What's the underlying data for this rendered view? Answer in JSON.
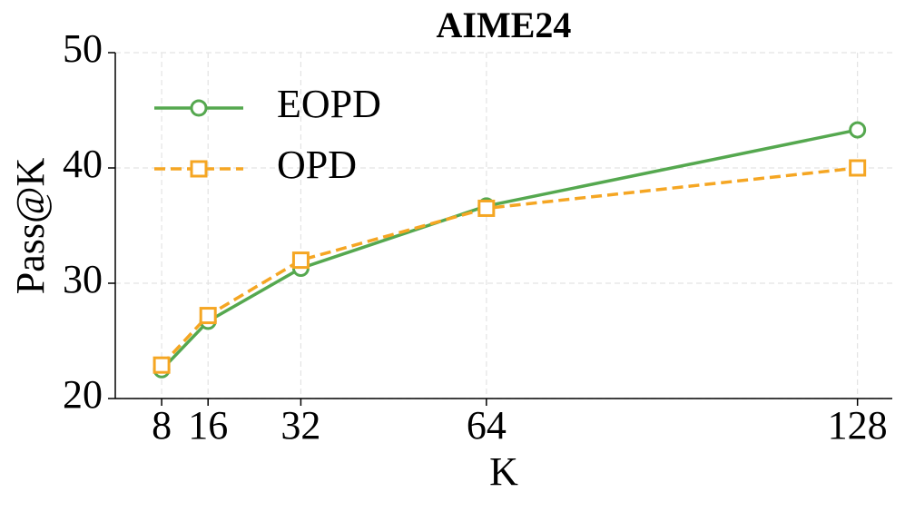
{
  "chart_data": {
    "type": "line",
    "title": "AIME24",
    "xlabel": "K",
    "ylabel": "Pass@K",
    "x": [
      8,
      16,
      32,
      64,
      128
    ],
    "series": [
      {
        "name": "EOPD",
        "color": "#55a84f",
        "linestyle": "solid",
        "marker": "o",
        "values": [
          22.5,
          26.7,
          31.3,
          36.7,
          43.3
        ]
      },
      {
        "name": "OPD",
        "color": "#f5a623",
        "linestyle": "dashed",
        "marker": "s",
        "values": [
          22.9,
          27.2,
          32.0,
          36.5,
          40.0
        ]
      }
    ],
    "xlim": [
      0,
      134
    ],
    "xticks": [
      8,
      16,
      32,
      64,
      128
    ],
    "ylim": [
      20,
      50
    ],
    "yticks": [
      20,
      30,
      40,
      50
    ],
    "grid": true,
    "legend": "upper left"
  }
}
